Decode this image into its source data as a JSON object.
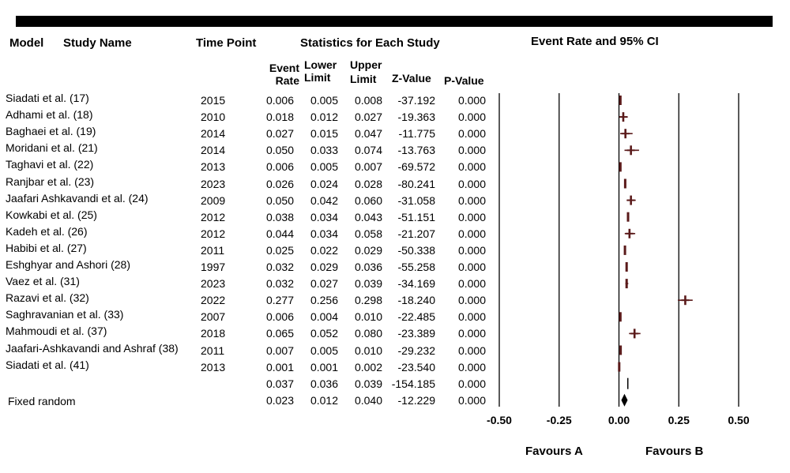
{
  "headers": {
    "model": "Model",
    "study_name": "Study Name",
    "time_point": "Time Point",
    "statistics": "Statistics for Each Study",
    "plot_title": "Event Rate and 95% CI",
    "event_rate": [
      "Event",
      "Rate"
    ],
    "lower_limit": [
      "Lower",
      "Limit"
    ],
    "upper_limit": [
      "Upper",
      "Limit"
    ],
    "z_value": "Z-Value",
    "p_value": "P-Value"
  },
  "chart_data": {
    "type": "forest",
    "title": "Event Rate and 95% CI",
    "xlim": [
      -0.5,
      0.5
    ],
    "x_ticks": [
      "-0.50",
      "-0.25",
      "0.00",
      "0.25",
      "0.50"
    ],
    "x_tick_values": [
      -0.5,
      -0.25,
      0,
      0.25,
      0.5
    ],
    "favours_left": "Favours A",
    "favours_right": "Favours B",
    "marker_color": "#5a1a1a",
    "studies": [
      {
        "model": "",
        "name": "Siadati et al. (17)",
        "year": "2015",
        "rate": "0.006",
        "lower": "0.005",
        "upper": "0.008",
        "z": "-37.192",
        "p": "0.000",
        "r": 0.006,
        "lo": 0.005,
        "hi": 0.008,
        "marker": "box"
      },
      {
        "model": "",
        "name": "Adhami et al. (18)",
        "year": "2010",
        "rate": "0.018",
        "lower": "0.012",
        "upper": "0.027",
        "z": "-19.363",
        "p": "0.000",
        "r": 0.018,
        "lo": 0.012,
        "hi": 0.027,
        "marker": "plus"
      },
      {
        "model": "",
        "name": "Baghaei et al. (19)",
        "year": "2014",
        "rate": "0.027",
        "lower": "0.015",
        "upper": "0.047",
        "z": "-11.775",
        "p": "0.000",
        "r": 0.027,
        "lo": 0.015,
        "hi": 0.047,
        "marker": "plus"
      },
      {
        "model": "",
        "name": "Moridani et al. (21)",
        "year": "2014",
        "rate": "0.050",
        "lower": "0.033",
        "upper": "0.074",
        "z": "-13.763",
        "p": "0.000",
        "r": 0.05,
        "lo": 0.033,
        "hi": 0.074,
        "marker": "plus"
      },
      {
        "model": "",
        "name": "Taghavi et al. (22)",
        "year": "2013",
        "rate": "0.006",
        "lower": "0.005",
        "upper": "0.007",
        "z": "-69.572",
        "p": "0.000",
        "r": 0.006,
        "lo": 0.005,
        "hi": 0.007,
        "marker": "box"
      },
      {
        "model": "",
        "name": "Ranjbar et al. (23)",
        "year": "2023",
        "rate": "0.026",
        "lower": "0.024",
        "upper": "0.028",
        "z": "-80.241",
        "p": "0.000",
        "r": 0.026,
        "lo": 0.024,
        "hi": 0.028,
        "marker": "box"
      },
      {
        "model": "",
        "name": "Jaafari Ashkavandi et al. (24)",
        "year": "2009",
        "rate": "0.050",
        "lower": "0.042",
        "upper": "0.060",
        "z": "-31.058",
        "p": "0.000",
        "r": 0.05,
        "lo": 0.042,
        "hi": 0.06,
        "marker": "plus"
      },
      {
        "model": "",
        "name": "Kowkabi et al. (25)",
        "year": "2012",
        "rate": "0.038",
        "lower": "0.034",
        "upper": "0.043",
        "z": "-51.151",
        "p": "0.000",
        "r": 0.038,
        "lo": 0.034,
        "hi": 0.043,
        "marker": "box"
      },
      {
        "model": "",
        "name": "Kadeh et al. (26)",
        "year": "2012",
        "rate": "0.044",
        "lower": "0.034",
        "upper": "0.058",
        "z": "-21.207",
        "p": "0.000",
        "r": 0.044,
        "lo": 0.034,
        "hi": 0.058,
        "marker": "plus"
      },
      {
        "model": "",
        "name": "Habibi et al. (27)",
        "year": "2011",
        "rate": "0.025",
        "lower": "0.022",
        "upper": "0.029",
        "z": "-50.338",
        "p": "0.000",
        "r": 0.025,
        "lo": 0.022,
        "hi": 0.029,
        "marker": "box"
      },
      {
        "model": "",
        "name": "Eshghyar and Ashori (28)",
        "year": "1997",
        "rate": "0.032",
        "lower": "0.029",
        "upper": "0.036",
        "z": "-55.258",
        "p": "0.000",
        "r": 0.032,
        "lo": 0.029,
        "hi": 0.036,
        "marker": "box"
      },
      {
        "model": "",
        "name": "Vaez et al. (31)",
        "year": "2023",
        "rate": "0.032",
        "lower": "0.027",
        "upper": "0.039",
        "z": "-34.169",
        "p": "0.000",
        "r": 0.032,
        "lo": 0.027,
        "hi": 0.039,
        "marker": "box"
      },
      {
        "model": "",
        "name": "Razavi et al. (32)",
        "year": "2022",
        "rate": "0.277",
        "lower": "0.256",
        "upper": "0.298",
        "z": "-18.240",
        "p": "0.000",
        "r": 0.277,
        "lo": 0.256,
        "hi": 0.298,
        "marker": "plus"
      },
      {
        "model": "",
        "name": "Saghravanian et al. (33)",
        "year": "2007",
        "rate": "0.006",
        "lower": "0.004",
        "upper": "0.010",
        "z": "-22.485",
        "p": "0.000",
        "r": 0.006,
        "lo": 0.004,
        "hi": 0.01,
        "marker": "box"
      },
      {
        "model": "",
        "name": "Mahmoudi et al. (37)",
        "year": "2018",
        "rate": "0.065",
        "lower": "0.052",
        "upper": "0.080",
        "z": "-23.389",
        "p": "0.000",
        "r": 0.065,
        "lo": 0.052,
        "hi": 0.08,
        "marker": "plus"
      },
      {
        "model": "",
        "name": "Jaafari-Ashkavandi and Ashraf (38)",
        "year": "2011",
        "rate": "0.007",
        "lower": "0.005",
        "upper": "0.010",
        "z": "-29.232",
        "p": "0.000",
        "r": 0.007,
        "lo": 0.005,
        "hi": 0.01,
        "marker": "box"
      },
      {
        "model": "",
        "name": "Siadati et al. (41)",
        "year": "2013",
        "rate": "0.001",
        "lower": "0.001",
        "upper": "0.002",
        "z": "-23.540",
        "p": "0.000",
        "r": 0.001,
        "lo": 0.001,
        "hi": 0.002,
        "marker": "box"
      },
      {
        "model": "",
        "name": "",
        "year": "",
        "rate": "0.037",
        "lower": "0.036",
        "upper": "0.039",
        "z": "-154.185",
        "p": "0.000",
        "r": 0.037,
        "lo": 0.036,
        "hi": 0.039,
        "marker": "line"
      },
      {
        "model": "Fixed random",
        "name": "",
        "year": "",
        "rate": "0.023",
        "lower": "0.012",
        "upper": "0.040",
        "z": "-12.229",
        "p": "0.000",
        "r": 0.023,
        "lo": 0.012,
        "hi": 0.04,
        "marker": "diamond"
      }
    ]
  }
}
